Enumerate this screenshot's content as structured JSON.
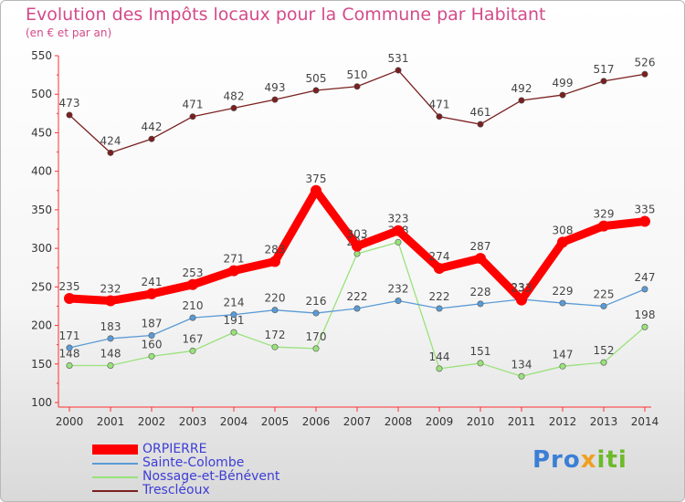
{
  "chart_data": {
    "type": "line",
    "title": "Evolution des Impôts locaux pour la Commune par Habitant",
    "subtitle": "(en € et par an)",
    "categories": [
      "2000",
      "2001",
      "2002",
      "2003",
      "2004",
      "2005",
      "2006",
      "2007",
      "2008",
      "2009",
      "2010",
      "2011",
      "2012",
      "2013",
      "2014"
    ],
    "ylim": [
      100,
      550
    ],
    "yticks": [
      100,
      150,
      200,
      250,
      300,
      350,
      400,
      450,
      500,
      550
    ],
    "series": [
      {
        "name": "ORPIERRE",
        "color": "#ff0000",
        "values": [
          235,
          232,
          241,
          253,
          271,
          283,
          375,
          303,
          323,
          274,
          287,
          233,
          308,
          329,
          335
        ]
      },
      {
        "name": "Sainte-Colombe",
        "color": "#5b9bd5",
        "values": [
          171,
          183,
          187,
          210,
          214,
          220,
          216,
          222,
          232,
          222,
          228,
          234,
          229,
          225,
          247
        ]
      },
      {
        "name": "Nossage-et-Bénévent",
        "color": "#99e27a",
        "values": [
          148,
          148,
          160,
          167,
          191,
          172,
          170,
          293,
          308,
          144,
          151,
          134,
          147,
          152,
          198
        ]
      },
      {
        "name": "Trescléoux",
        "color": "#7a1f1f",
        "values": [
          473,
          424,
          442,
          471,
          482,
          493,
          505,
          510,
          531,
          471,
          461,
          492,
          499,
          517,
          526
        ]
      }
    ]
  },
  "logo": {
    "p1": "Pro",
    "p2": "x",
    "p3": "iti"
  },
  "colors": {
    "title": "#d44a8a",
    "legend_text": "#3d3dd6"
  }
}
